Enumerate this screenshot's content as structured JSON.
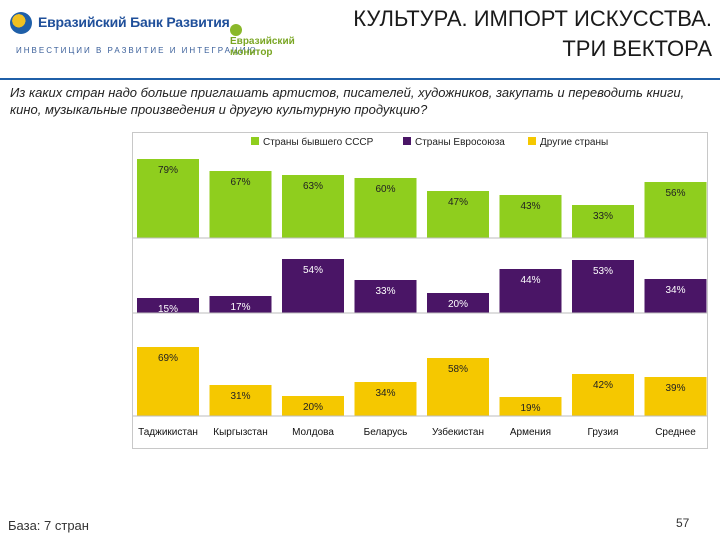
{
  "header": {
    "bank_name": "Евразийский Банк Развития",
    "bank_tagline": "ИНВЕСТИЦИИ В РАЗВИТИЕ И ИНТЕГРАЦИЮ",
    "monitor_line1": "Евразийский",
    "monitor_line2": "монитор",
    "title_line1": "КУЛЬТУРА. ИМПОРТ ИСКУССТВА.",
    "title_line2": "ТРИ ВЕКТОРА"
  },
  "question": "Из каких стран надо больше приглашать артистов, писателей, художников, закупать и переводить книги, кино, музыкальные произведения и другую культурную продукцию?",
  "footer": {
    "base": "База: 7 стран",
    "page": "57"
  },
  "colors": {
    "ussr": "#8fce1e",
    "eu": "#4a1566",
    "other": "#f5c800"
  },
  "chart_data": {
    "type": "bar",
    "layout": "three stacked panels",
    "categories": [
      "Таджикистан",
      "Кыргызстан",
      "Молдова",
      "Беларусь",
      "Узбекистан",
      "Армения",
      "Грузия",
      "Среднее"
    ],
    "series": [
      {
        "name": "Страны бывшего СССР",
        "values": [
          79,
          67,
          63,
          60,
          47,
          43,
          33,
          56
        ],
        "labels": [
          "79%",
          "67%",
          "63%",
          "60%",
          "47%",
          "43%",
          "33%",
          "56%"
        ]
      },
      {
        "name": "Страны Евросоюза",
        "values": [
          15,
          17,
          54,
          33,
          20,
          44,
          53,
          34
        ],
        "labels": [
          "15%",
          "17%",
          "54%",
          "33%",
          "20%",
          "44%",
          "53%",
          "34%"
        ]
      },
      {
        "name": "Другие страны",
        "values": [
          69,
          31,
          20,
          34,
          58,
          19,
          42,
          39
        ],
        "labels": [
          "69%",
          "31%",
          "20%",
          "34%",
          "58%",
          "19%",
          "42%",
          "39%"
        ]
      }
    ],
    "ylim": [
      0,
      100
    ],
    "legend_position": "top"
  }
}
